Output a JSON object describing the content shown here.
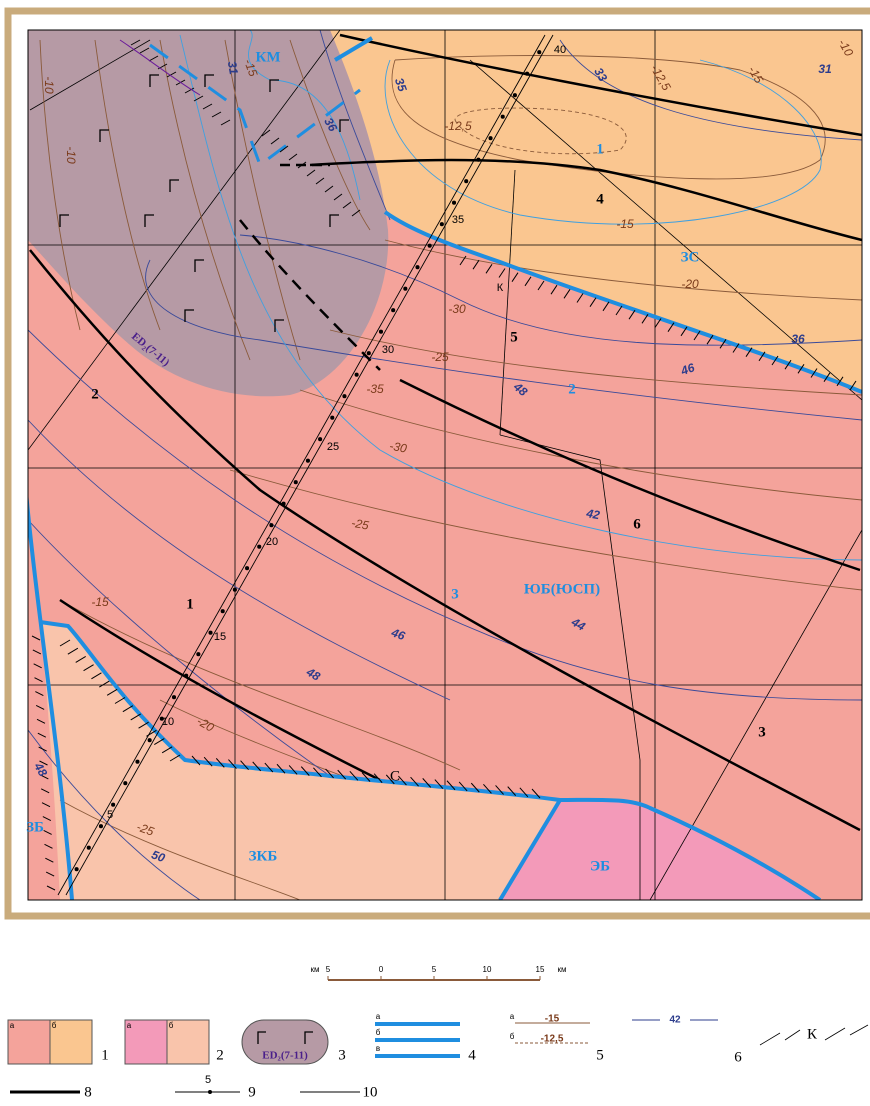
{
  "map_labels": [
    "КМ",
    "31",
    "-15",
    "36",
    "-10",
    "-10",
    "35",
    "40",
    "33",
    "-12,5",
    "-15",
    "31",
    "-10",
    "-12,5",
    "1",
    "4",
    "35",
    "-15",
    "ЗС",
    "-20",
    "36",
    "К",
    "-30",
    "5",
    "ED₂(7-11)",
    "30",
    "-25",
    "48",
    "2",
    "46",
    "2",
    "-35",
    "-30",
    "25",
    "-25",
    "42",
    "6",
    "20",
    "ЮБ(ЮСП)",
    "3",
    "-15",
    "1",
    "44",
    "46",
    "15",
    "48",
    "10",
    "-20",
    "3",
    "С",
    "48",
    "5",
    "-25",
    "50",
    "ЗБ",
    "ЗКБ",
    "ЭБ"
  ],
  "scale": {
    "unit_left": "км",
    "ticks": [
      "5",
      "0",
      "5",
      "10",
      "15"
    ],
    "unit_right": "км"
  },
  "legend": {
    "items": [
      {
        "number": "1",
        "sub": [
          "а",
          "б"
        ]
      },
      {
        "number": "2",
        "sub": [
          "а",
          "б"
        ]
      },
      {
        "number": "3",
        "label": "ED₂(7-11)"
      },
      {
        "number": "4",
        "sub": [
          "а",
          "б",
          "в"
        ]
      },
      {
        "number": "5",
        "sub": [
          "а",
          "б"
        ],
        "values": [
          "-15",
          "-12,5"
        ]
      },
      {
        "number": "6",
        "value": "42"
      },
      {
        "label": "К"
      },
      {
        "number": "8"
      },
      {
        "number": "9",
        "value": "5"
      },
      {
        "number": "10"
      }
    ]
  }
}
